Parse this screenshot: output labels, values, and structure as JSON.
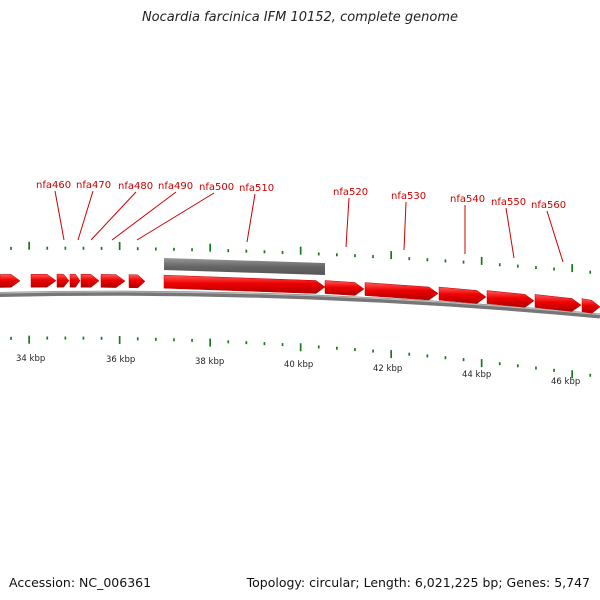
{
  "title": "Nocardia farcinica IFM 10152, complete genome",
  "footer": {
    "accession": "Accession: NC_006361",
    "summary": "Topology: circular; Length: 6,021,225 bp; Genes: 5,747"
  },
  "colors": {
    "gene": "#ee0000",
    "selected_region": "#666666",
    "backbone": "#888888",
    "tick": "#1a7a1a",
    "label": "#cc0000"
  },
  "gene_labels": [
    "nfa460",
    "nfa470",
    "nfa480",
    "nfa490",
    "nfa500",
    "nfa510",
    "nfa520",
    "nfa530",
    "nfa540",
    "nfa550",
    "nfa560"
  ],
  "position_labels": [
    "34 kbp",
    "36 kbp",
    "38 kbp",
    "40 kbp",
    "42 kbp",
    "44 kbp",
    "46 kbp"
  ]
}
